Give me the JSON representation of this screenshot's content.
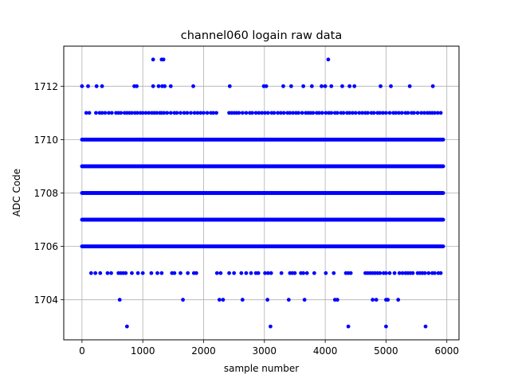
{
  "chart_data": {
    "type": "scatter",
    "title": "channel060 logain raw data",
    "xlabel": "sample number",
    "ylabel": "ADC Code",
    "xlim": [
      -300,
      6200
    ],
    "ylim": [
      1702.5,
      1713.5
    ],
    "xticks": [
      0,
      1000,
      2000,
      3000,
      4000,
      5000,
      6000
    ],
    "yticks": [
      1704,
      1706,
      1708,
      1710,
      1712
    ],
    "grid": true,
    "marker_color": "#0000ff",
    "x_extent": [
      0,
      5950
    ],
    "dense_levels": [
      1706,
      1707,
      1708,
      1709,
      1710
    ],
    "sparse_levels": {
      "1711": [
        70,
        120,
        230,
        290,
        330,
        380,
        440,
        490,
        560,
        600,
        640,
        700,
        740,
        780,
        820,
        870,
        910,
        960,
        1000,
        1050,
        1100,
        1150,
        1190,
        1230,
        1280,
        1310,
        1350,
        1400,
        1460,
        1520,
        1560,
        1620,
        1680,
        1730,
        1790,
        1850,
        1900,
        1950,
        2000,
        2060,
        2120,
        2160,
        2210,
        2420,
        2460,
        2500,
        2540,
        2580,
        2640,
        2700,
        2760,
        2800,
        2860,
        2910,
        2960,
        3010,
        3060,
        3120,
        3160,
        3220,
        3270,
        3320,
        3380,
        3420,
        3470,
        3520,
        3560,
        3620,
        3680,
        3720,
        3760,
        3800,
        3860,
        3900,
        3950,
        4010,
        4060,
        4100,
        4160,
        4200,
        4260,
        4300,
        4360,
        4400,
        4450,
        4500,
        4560,
        4610,
        4660,
        4700,
        4760,
        4800,
        4860,
        4900,
        4950,
        5000,
        5060,
        5120,
        5160,
        5210,
        5260,
        5320,
        5360,
        5420,
        5460,
        5520,
        5580,
        5630,
        5680,
        5720,
        5760,
        5800,
        5850,
        5900
      ],
      "1712": [
        0,
        100,
        240,
        330,
        860,
        900,
        1170,
        1260,
        1320,
        1360,
        1460,
        1830,
        2430,
        2990,
        3030,
        3310,
        3440,
        3640,
        3780,
        3940,
        4000,
        4100,
        4280,
        4400,
        4480,
        4910,
        5080,
        5390,
        5770
      ],
      "1713": [
        1170,
        1310,
        1340,
        4050
      ],
      "1705": [
        150,
        220,
        300,
        420,
        480,
        600,
        640,
        680,
        720,
        820,
        920,
        1000,
        1140,
        1240,
        1310,
        1480,
        1520,
        1620,
        1740,
        1840,
        1880,
        2220,
        2280,
        2420,
        2500,
        2620,
        2700,
        2780,
        2860,
        2900,
        3010,
        3060,
        3110,
        3280,
        3420,
        3460,
        3500,
        3600,
        3640,
        3700,
        3820,
        4010,
        4140,
        4340,
        4380,
        4420,
        4660,
        4700,
        4740,
        4780,
        4820,
        4860,
        4900,
        4960,
        5000,
        5060,
        5140,
        5220,
        5270,
        5320,
        5360,
        5400,
        5440,
        5520,
        5560,
        5600,
        5640,
        5700,
        5760,
        5800,
        5860,
        5900
      ],
      "1704": [
        620,
        1660,
        2260,
        2320,
        2640,
        3050,
        3400,
        3660,
        4160,
        4200,
        4780,
        4840,
        5000,
        5030,
        5200
      ],
      "1703": [
        740,
        3100,
        4380,
        5000,
        5650
      ]
    }
  }
}
